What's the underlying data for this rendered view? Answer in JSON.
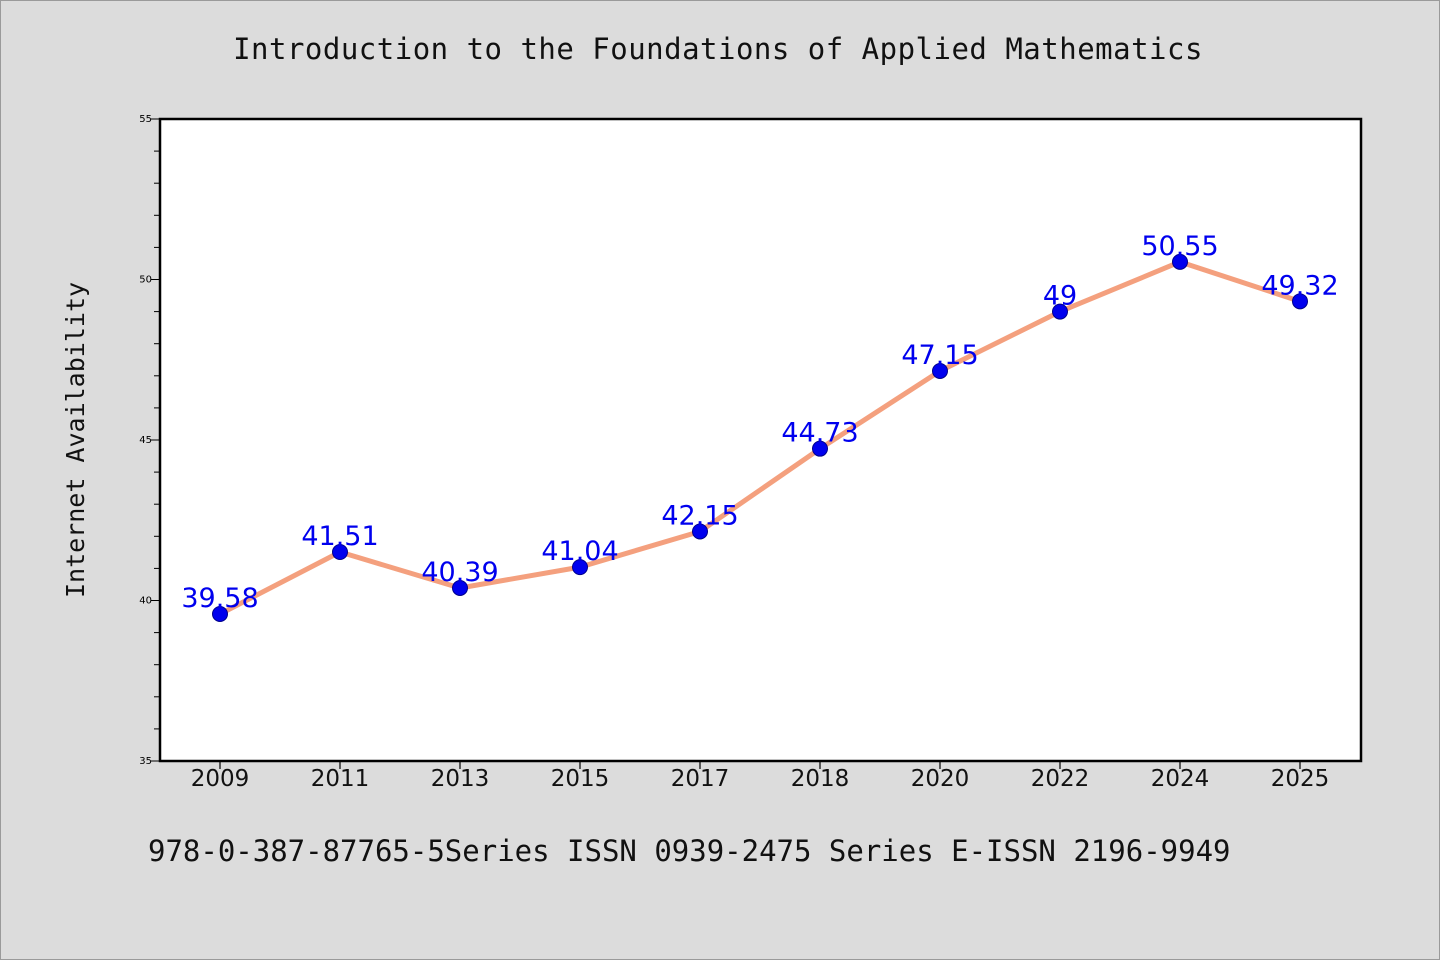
{
  "chart_data": {
    "type": "line",
    "title": "Introduction to the Foundations of Applied Mathematics",
    "ylabel": "Internet Availability",
    "xlabel": "",
    "categories": [
      "2009",
      "2011",
      "2013",
      "2015",
      "2017",
      "2018",
      "2020",
      "2022",
      "2024",
      "2025"
    ],
    "series": [
      {
        "values": [
          39.58,
          41.51,
          40.39,
          41.04,
          42.15,
          44.73,
          47.15,
          49,
          50.55,
          49.32
        ],
        "labels": [
          "39.58",
          "41.51",
          "40.39",
          "41.04",
          "42.15",
          "44.73",
          "47.15",
          "49",
          "50.55",
          "49.32"
        ]
      }
    ],
    "ylim": [
      35,
      55
    ],
    "yticks": [
      35,
      40,
      45,
      50,
      55
    ],
    "grid": false,
    "line_color": "#f4a07e",
    "marker_color": "#0000ee",
    "label_color": "#0000ee"
  },
  "footer_text": "978-0-387-87765-5Series ISSN 0939-2475 Series E-ISSN 2196-9949"
}
